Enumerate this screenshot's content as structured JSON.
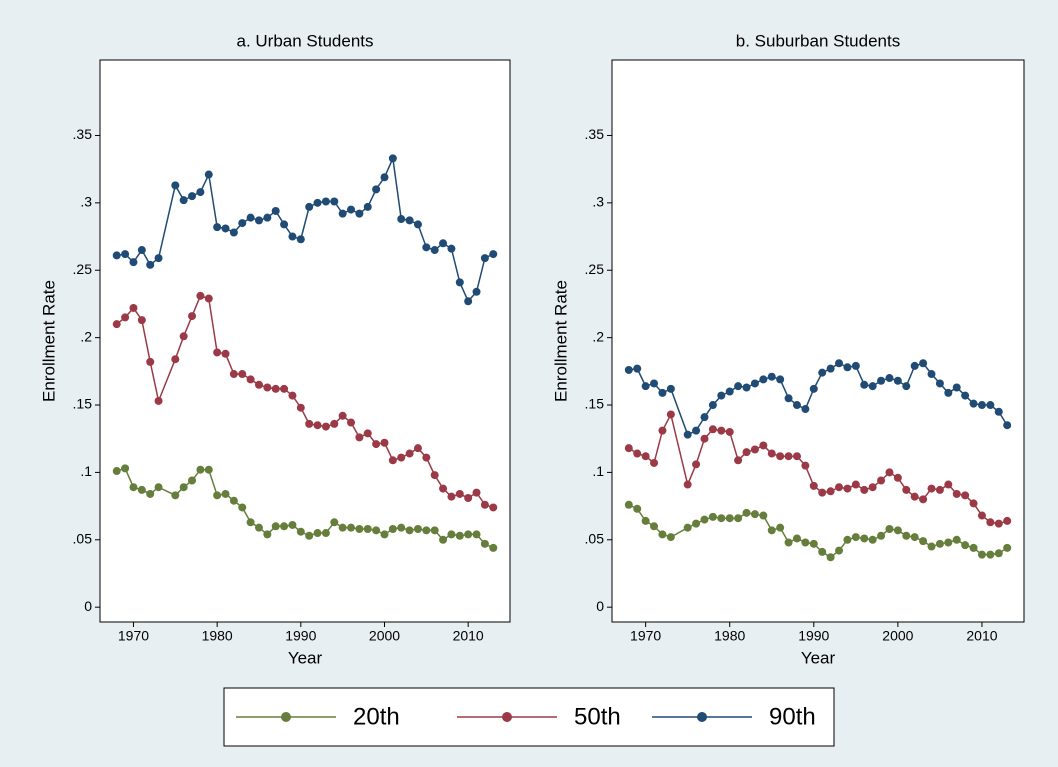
{
  "chart_data": [
    {
      "type": "line",
      "title": "a. Urban Students",
      "x_label": "Year",
      "y_label": "Enrollment Rate",
      "x": [
        1968,
        1969,
        1970,
        1971,
        1972,
        1973,
        1975,
        1976,
        1977,
        1978,
        1979,
        1980,
        1981,
        1982,
        1983,
        1984,
        1985,
        1986,
        1987,
        1988,
        1989,
        1990,
        1991,
        1992,
        1993,
        1994,
        1995,
        1996,
        1997,
        1998,
        1999,
        2000,
        2001,
        2002,
        2003,
        2004,
        2005,
        2006,
        2007,
        2008,
        2009,
        2010,
        2011,
        2012,
        2013
      ],
      "xlim": [
        1966,
        2015
      ],
      "xticks": [
        1970,
        1980,
        1990,
        2000,
        2010
      ],
      "ylim": [
        -0.011,
        0.406
      ],
      "yticks": [
        0,
        {
          "value": 0.05,
          "label": ".05"
        },
        {
          "value": 0.1,
          "label": ".1"
        },
        {
          "value": 0.15,
          "label": ".15"
        },
        {
          "value": 0.2,
          "label": ".2"
        },
        {
          "value": 0.25,
          "label": ".25"
        },
        {
          "value": 0.3,
          "label": ".3"
        },
        {
          "value": 0.35,
          "label": ".35"
        }
      ],
      "series": [
        {
          "name": "20th",
          "color": "#667e3b",
          "values": [
            0.101,
            0.103,
            0.089,
            0.087,
            0.084,
            0.089,
            0.083,
            0.089,
            0.094,
            0.102,
            0.102,
            0.083,
            0.084,
            0.079,
            0.074,
            0.063,
            0.059,
            0.054,
            0.06,
            0.06,
            0.061,
            0.056,
            0.053,
            0.055,
            0.055,
            0.063,
            0.059,
            0.059,
            0.058,
            0.058,
            0.057,
            0.054,
            0.058,
            0.059,
            0.057,
            0.058,
            0.057,
            0.057,
            0.05,
            0.054,
            0.053,
            0.054,
            0.054,
            0.047,
            0.044
          ]
        },
        {
          "name": "50th",
          "color": "#9b3a46",
          "values": [
            0.21,
            0.215,
            0.222,
            0.213,
            0.182,
            0.153,
            0.184,
            0.201,
            0.216,
            0.231,
            0.229,
            0.189,
            0.188,
            0.173,
            0.173,
            0.169,
            0.165,
            0.163,
            0.162,
            0.162,
            0.157,
            0.148,
            0.136,
            0.135,
            0.134,
            0.136,
            0.142,
            0.137,
            0.126,
            0.129,
            0.121,
            0.122,
            0.109,
            0.111,
            0.114,
            0.118,
            0.111,
            0.098,
            0.088,
            0.082,
            0.084,
            0.081,
            0.085,
            0.076,
            0.074
          ]
        },
        {
          "name": "90th",
          "color": "#1f4b74",
          "values": [
            0.261,
            0.262,
            0.256,
            0.265,
            0.254,
            0.259,
            0.313,
            0.302,
            0.305,
            0.308,
            0.321,
            0.282,
            0.281,
            0.278,
            0.285,
            0.289,
            0.287,
            0.289,
            0.294,
            0.284,
            0.275,
            0.273,
            0.297,
            0.3,
            0.301,
            0.301,
            0.292,
            0.295,
            0.292,
            0.297,
            0.31,
            0.319,
            0.333,
            0.288,
            0.287,
            0.284,
            0.267,
            0.265,
            0.27,
            0.266,
            0.241,
            0.227,
            0.234,
            0.259,
            0.262
          ]
        }
      ]
    },
    {
      "type": "line",
      "title": "b. Suburban Students",
      "x_label": "Year",
      "y_label": "Enrollment Rate",
      "x": [
        1968,
        1969,
        1970,
        1971,
        1972,
        1973,
        1975,
        1976,
        1977,
        1978,
        1979,
        1980,
        1981,
        1982,
        1983,
        1984,
        1985,
        1986,
        1987,
        1988,
        1989,
        1990,
        1991,
        1992,
        1993,
        1994,
        1995,
        1996,
        1997,
        1998,
        1999,
        2000,
        2001,
        2002,
        2003,
        2004,
        2005,
        2006,
        2007,
        2008,
        2009,
        2010,
        2011,
        2012,
        2013
      ],
      "xlim": [
        1966,
        2015
      ],
      "xticks": [
        1970,
        1980,
        1990,
        2000,
        2010
      ],
      "ylim": [
        -0.011,
        0.406
      ],
      "yticks": [
        0,
        {
          "value": 0.05,
          "label": ".05"
        },
        {
          "value": 0.1,
          "label": ".1"
        },
        {
          "value": 0.15,
          "label": ".15"
        },
        {
          "value": 0.2,
          "label": ".2"
        },
        {
          "value": 0.25,
          "label": ".25"
        },
        {
          "value": 0.3,
          "label": ".3"
        },
        {
          "value": 0.35,
          "label": ".35"
        }
      ],
      "series": [
        {
          "color": "#667e3b",
          "values": [
            0.076,
            0.073,
            0.064,
            0.06,
            0.054,
            0.052,
            0.059,
            0.062,
            0.065,
            0.067,
            0.066,
            0.066,
            0.066,
            0.07,
            0.069,
            0.068,
            0.057,
            0.059,
            0.048,
            0.051,
            0.048,
            0.047,
            0.041,
            0.037,
            0.042,
            0.05,
            0.052,
            0.051,
            0.05,
            0.053,
            0.058,
            0.057,
            0.053,
            0.052,
            0.049,
            0.045,
            0.047,
            0.048,
            0.05,
            0.046,
            0.044,
            0.039,
            0.039,
            0.04,
            0.044
          ]
        },
        {
          "color": "#9b3a46",
          "values": [
            0.118,
            0.114,
            0.112,
            0.107,
            0.131,
            0.143,
            0.091,
            0.106,
            0.125,
            0.132,
            0.131,
            0.13,
            0.109,
            0.115,
            0.117,
            0.12,
            0.114,
            0.112,
            0.112,
            0.112,
            0.105,
            0.09,
            0.085,
            0.086,
            0.089,
            0.088,
            0.091,
            0.087,
            0.089,
            0.094,
            0.1,
            0.096,
            0.087,
            0.082,
            0.08,
            0.088,
            0.087,
            0.091,
            0.084,
            0.083,
            0.077,
            0.068,
            0.063,
            0.062,
            0.064
          ]
        },
        {
          "color": "#1f4b74",
          "values": [
            0.176,
            0.177,
            0.164,
            0.166,
            0.159,
            0.162,
            0.128,
            0.131,
            0.141,
            0.15,
            0.157,
            0.16,
            0.164,
            0.163,
            0.166,
            0.169,
            0.171,
            0.169,
            0.155,
            0.15,
            0.147,
            0.162,
            0.174,
            0.177,
            0.181,
            0.178,
            0.179,
            0.165,
            0.164,
            0.168,
            0.17,
            0.168,
            0.164,
            0.179,
            0.181,
            0.173,
            0.166,
            0.159,
            0.163,
            0.157,
            0.151,
            0.15,
            0.15,
            0.145,
            0.135
          ]
        }
      ]
    }
  ]
}
